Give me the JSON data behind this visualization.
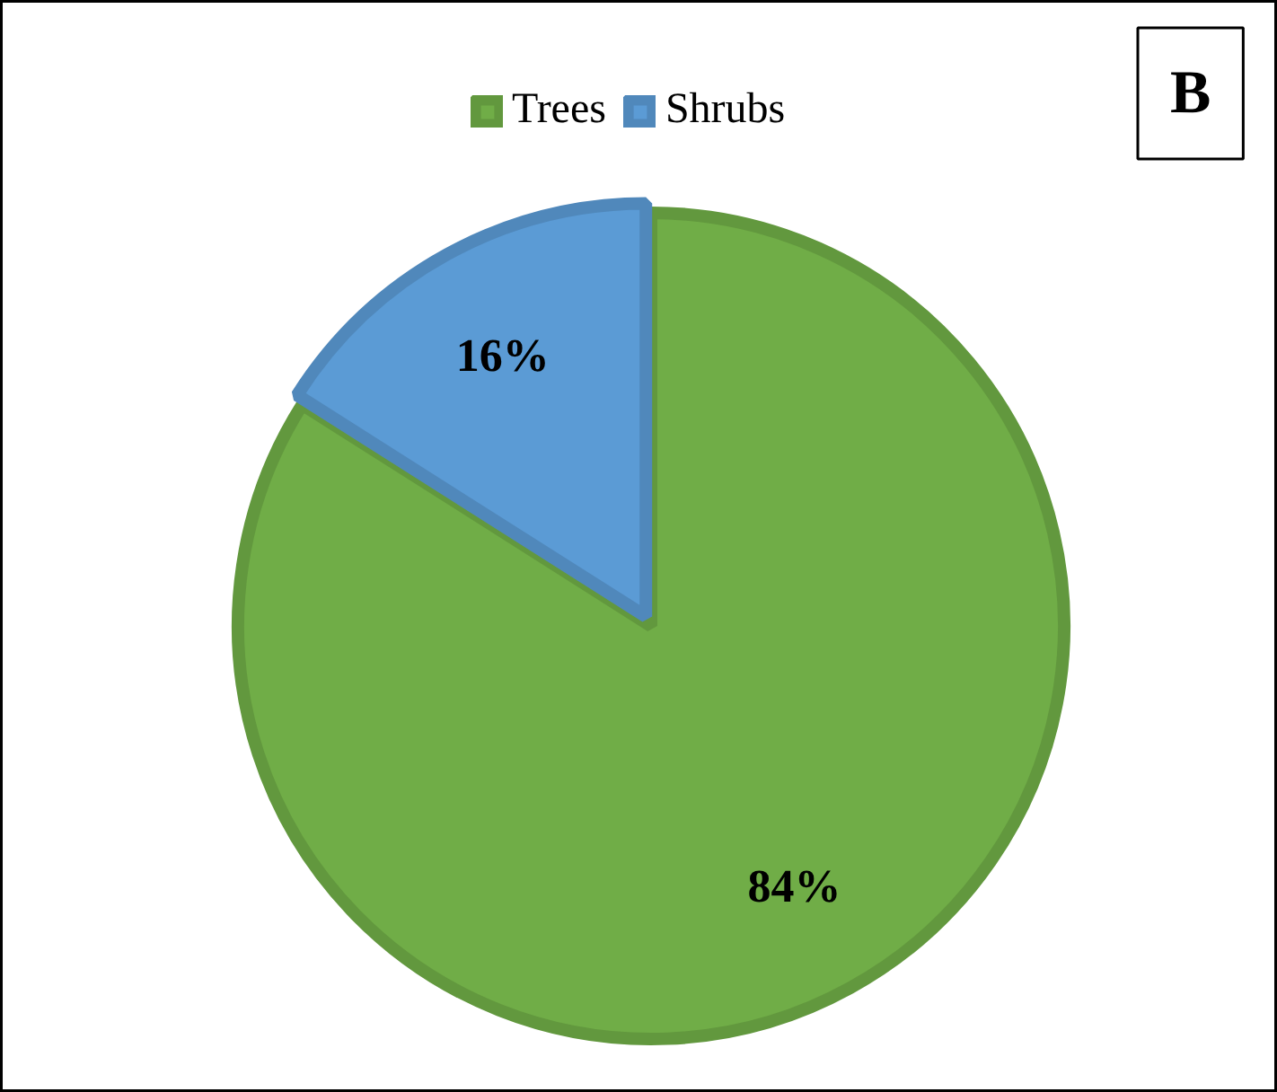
{
  "chart_data": {
    "type": "pie",
    "categories": [
      "Trees",
      "Shrubs"
    ],
    "values": [
      84,
      16
    ],
    "colors": [
      "#70ad47",
      "#5b9bd5"
    ],
    "value_labels": [
      "84%",
      "16%"
    ],
    "legend": "top",
    "annotations": [
      "B"
    ]
  }
}
